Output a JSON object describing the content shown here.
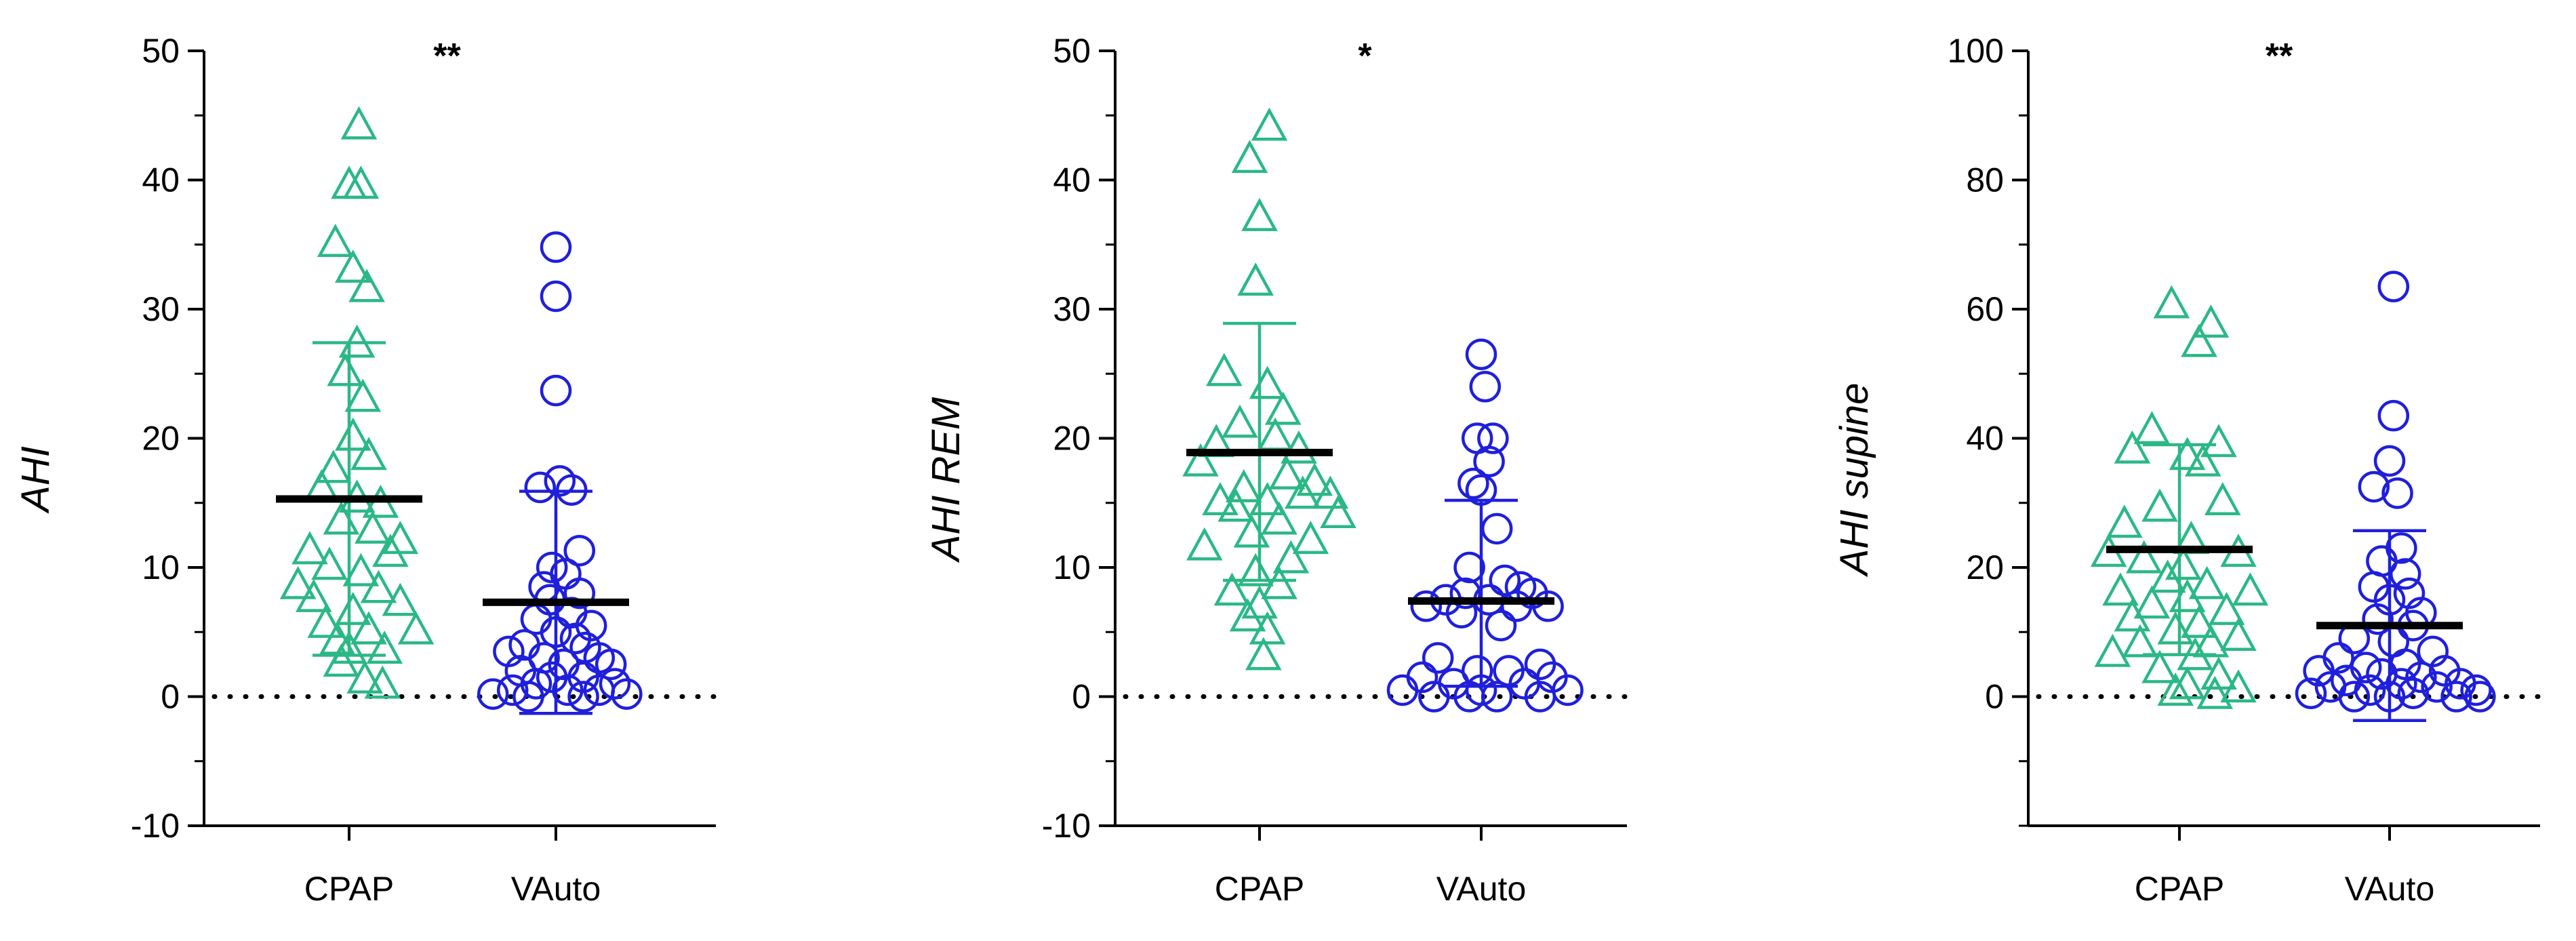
{
  "colors": {
    "CPAP": "#2bb886",
    "VAuto": "#1f1fdc",
    "mean_line": "#000000",
    "axis": "#000000"
  },
  "markers": {
    "CPAP": "triangle-open",
    "VAuto": "circle-open"
  },
  "chart_data": [
    {
      "type": "scatter",
      "title": "",
      "xlabel": "",
      "ylabel": "AHI",
      "ylim": [
        -10,
        50
      ],
      "yticks": [
        -10,
        0,
        10,
        20,
        30,
        40,
        50
      ],
      "y_minor_step": 5,
      "significance": "**",
      "zero_line": "dotted",
      "grid": false,
      "categories": [
        "CPAP",
        "VAuto"
      ],
      "series": [
        {
          "name": "CPAP",
          "mean": 15.3,
          "sd_upper": 27.4,
          "sd_lower": 3.2,
          "points": [
            [
              0.05,
              44.1
            ],
            [
              0.0,
              39.5
            ],
            [
              0.06,
              39.5
            ],
            [
              -0.07,
              35.0
            ],
            [
              0.02,
              33.0
            ],
            [
              0.09,
              31.5
            ],
            [
              0.04,
              27.2
            ],
            [
              -0.02,
              25.0
            ],
            [
              0.07,
              23.0
            ],
            [
              0.02,
              20.0
            ],
            [
              0.1,
              18.5
            ],
            [
              -0.08,
              17.5
            ],
            [
              -0.14,
              16.0
            ],
            [
              0.04,
              15.2
            ],
            [
              0.16,
              14.8
            ],
            [
              -0.04,
              13.5
            ],
            [
              0.12,
              12.8
            ],
            [
              0.26,
              12.0
            ],
            [
              -0.2,
              11.2
            ],
            [
              0.21,
              11.0
            ],
            [
              -0.1,
              10.0
            ],
            [
              0.06,
              9.5
            ],
            [
              -0.26,
              8.5
            ],
            [
              0.15,
              8.2
            ],
            [
              -0.18,
              7.5
            ],
            [
              0.26,
              7.2
            ],
            [
              0.02,
              6.5
            ],
            [
              -0.12,
              5.5
            ],
            [
              0.1,
              5.0
            ],
            [
              0.34,
              5.0
            ],
            [
              -0.06,
              4.2
            ],
            [
              0.0,
              3.5
            ],
            [
              0.18,
              3.5
            ],
            [
              -0.04,
              2.5
            ],
            [
              0.08,
              1.2
            ],
            [
              0.17,
              0.8
            ]
          ]
        },
        {
          "name": "VAuto",
          "mean": 7.3,
          "sd_upper": 15.9,
          "sd_lower": -1.3,
          "points": [
            [
              0.0,
              34.8
            ],
            [
              0.0,
              31.0
            ],
            [
              0.0,
              23.7
            ],
            [
              0.02,
              16.7
            ],
            [
              -0.08,
              16.2
            ],
            [
              0.08,
              16.0
            ],
            [
              0.12,
              11.3
            ],
            [
              -0.02,
              10.0
            ],
            [
              0.05,
              9.5
            ],
            [
              -0.06,
              8.5
            ],
            [
              0.12,
              8.0
            ],
            [
              -0.03,
              7.5
            ],
            [
              0.08,
              6.5
            ],
            [
              -0.1,
              6.0
            ],
            [
              0.18,
              5.5
            ],
            [
              0.0,
              5.0
            ],
            [
              0.1,
              4.5
            ],
            [
              -0.16,
              4.0
            ],
            [
              0.15,
              3.8
            ],
            [
              -0.24,
              3.5
            ],
            [
              0.22,
              3.0
            ],
            [
              -0.06,
              3.0
            ],
            [
              0.04,
              2.5
            ],
            [
              0.28,
              2.5
            ],
            [
              -0.18,
              2.0
            ],
            [
              -0.02,
              1.5
            ],
            [
              0.14,
              1.5
            ],
            [
              0.3,
              1.0
            ],
            [
              -0.1,
              1.0
            ],
            [
              -0.22,
              0.5
            ],
            [
              0.06,
              0.5
            ],
            [
              0.22,
              0.5
            ],
            [
              -0.32,
              0.2
            ],
            [
              -0.14,
              0.0
            ],
            [
              0.14,
              0.0
            ],
            [
              0.36,
              0.2
            ]
          ]
        }
      ]
    },
    {
      "type": "scatter",
      "title": "",
      "xlabel": "",
      "ylabel": "AHI REM",
      "ylim": [
        -10,
        50
      ],
      "yticks": [
        -10,
        0,
        10,
        20,
        30,
        40,
        50
      ],
      "y_minor_step": 5,
      "significance": "*",
      "zero_line": "dotted",
      "grid": false,
      "categories": [
        "CPAP",
        "VAuto"
      ],
      "series": [
        {
          "name": "CPAP",
          "mean": 18.9,
          "sd_upper": 28.9,
          "sd_lower": 9.0,
          "points": [
            [
              0.05,
              44.0
            ],
            [
              -0.05,
              41.5
            ],
            [
              0.0,
              37.0
            ],
            [
              -0.02,
              32.0
            ],
            [
              -0.18,
              25.0
            ],
            [
              0.04,
              24.0
            ],
            [
              0.12,
              22.0
            ],
            [
              -0.1,
              21.0
            ],
            [
              0.08,
              20.0
            ],
            [
              -0.22,
              19.5
            ],
            [
              0.2,
              19.0
            ],
            [
              -0.3,
              18.0
            ],
            [
              0.14,
              17.0
            ],
            [
              0.28,
              16.5
            ],
            [
              -0.08,
              16.0
            ],
            [
              0.36,
              15.5
            ],
            [
              -0.2,
              15.0
            ],
            [
              0.04,
              15.0
            ],
            [
              0.22,
              15.5
            ],
            [
              -0.12,
              14.5
            ],
            [
              0.4,
              14.0
            ],
            [
              0.1,
              13.5
            ],
            [
              -0.04,
              12.5
            ],
            [
              0.26,
              12.0
            ],
            [
              -0.28,
              11.5
            ],
            [
              0.16,
              10.5
            ],
            [
              -0.02,
              9.5
            ],
            [
              0.1,
              8.5
            ],
            [
              -0.14,
              8.0
            ],
            [
              0.0,
              7.0
            ],
            [
              -0.06,
              6.0
            ],
            [
              0.04,
              5.0
            ],
            [
              0.02,
              3.0
            ]
          ]
        },
        {
          "name": "VAuto",
          "mean": 7.4,
          "sd_upper": 15.2,
          "sd_lower": 0.8,
          "points": [
            [
              0.0,
              26.5
            ],
            [
              0.02,
              24.0
            ],
            [
              -0.02,
              20.0
            ],
            [
              0.06,
              20.0
            ],
            [
              0.04,
              18.2
            ],
            [
              -0.04,
              16.5
            ],
            [
              0.0,
              16.0
            ],
            [
              0.08,
              13.0
            ],
            [
              -0.06,
              10.0
            ],
            [
              0.12,
              9.0
            ],
            [
              0.2,
              8.5
            ],
            [
              -0.08,
              8.0
            ],
            [
              0.26,
              8.0
            ],
            [
              0.04,
              7.5
            ],
            [
              -0.18,
              7.5
            ],
            [
              0.18,
              7.0
            ],
            [
              0.34,
              7.0
            ],
            [
              -0.28,
              7.0
            ],
            [
              -0.1,
              6.5
            ],
            [
              0.1,
              5.5
            ],
            [
              -0.22,
              3.0
            ],
            [
              0.3,
              2.5
            ],
            [
              -0.02,
              2.0
            ],
            [
              0.14,
              2.0
            ],
            [
              0.36,
              1.5
            ],
            [
              -0.3,
              1.5
            ],
            [
              -0.14,
              1.0
            ],
            [
              0.22,
              1.0
            ],
            [
              0.0,
              0.5
            ],
            [
              0.44,
              0.5
            ],
            [
              -0.4,
              0.5
            ],
            [
              0.08,
              0.0
            ],
            [
              -0.24,
              0.0
            ],
            [
              0.3,
              0.0
            ],
            [
              -0.06,
              0.0
            ]
          ]
        }
      ]
    },
    {
      "type": "scatter",
      "title": "",
      "xlabel": "",
      "ylabel": "AHI supine",
      "ylim": [
        -20,
        100
      ],
      "yticks": [
        0,
        20,
        40,
        60,
        80,
        100
      ],
      "y_minor_step": 10,
      "significance": "**",
      "zero_line": "dotted",
      "grid": false,
      "categories": [
        "CPAP",
        "VAuto"
      ],
      "series": [
        {
          "name": "CPAP",
          "mean": 22.8,
          "sd_upper": 39.0,
          "sd_lower": 6.5,
          "points": [
            [
              -0.04,
              60.5
            ],
            [
              0.16,
              57.5
            ],
            [
              0.1,
              54.5
            ],
            [
              -0.14,
              41.0
            ],
            [
              0.2,
              39.0
            ],
            [
              -0.24,
              38.0
            ],
            [
              0.04,
              37.0
            ],
            [
              0.12,
              36.0
            ],
            [
              0.22,
              30.0
            ],
            [
              -0.1,
              29.0
            ],
            [
              -0.28,
              26.5
            ],
            [
              0.06,
              24.0
            ],
            [
              -0.36,
              22.0
            ],
            [
              0.3,
              22.0
            ],
            [
              -0.18,
              21.0
            ],
            [
              0.02,
              20.0
            ],
            [
              -0.06,
              18.0
            ],
            [
              0.14,
              17.0
            ],
            [
              -0.3,
              16.0
            ],
            [
              0.36,
              16.0
            ],
            [
              0.04,
              15.0
            ],
            [
              -0.14,
              14.0
            ],
            [
              0.24,
              13.0
            ],
            [
              -0.24,
              12.0
            ],
            [
              0.1,
              11.0
            ],
            [
              -0.02,
              10.0
            ],
            [
              0.3,
              9.0
            ],
            [
              -0.2,
              8.0
            ],
            [
              0.16,
              8.0
            ],
            [
              -0.34,
              6.5
            ],
            [
              0.08,
              6.0
            ],
            [
              -0.1,
              4.0
            ],
            [
              0.2,
              3.0
            ],
            [
              0.04,
              1.5
            ],
            [
              0.3,
              1.0
            ],
            [
              -0.02,
              0.5
            ],
            [
              0.18,
              0.0
            ]
          ]
        },
        {
          "name": "VAuto",
          "mean": 11.0,
          "sd_upper": 25.7,
          "sd_lower": -3.7,
          "points": [
            [
              0.02,
              63.5
            ],
            [
              0.02,
              43.5
            ],
            [
              0.0,
              36.5
            ],
            [
              -0.08,
              32.5
            ],
            [
              0.04,
              31.5
            ],
            [
              0.06,
              23.0
            ],
            [
              -0.04,
              21.0
            ],
            [
              0.08,
              19.0
            ],
            [
              -0.08,
              17.0
            ],
            [
              0.1,
              16.0
            ],
            [
              0.0,
              15.0
            ],
            [
              0.16,
              13.0
            ],
            [
              -0.06,
              12.0
            ],
            [
              0.12,
              11.0
            ],
            [
              -0.18,
              9.0
            ],
            [
              0.02,
              8.5
            ],
            [
              0.22,
              7.0
            ],
            [
              -0.26,
              6.0
            ],
            [
              0.08,
              5.0
            ],
            [
              -0.12,
              4.5
            ],
            [
              -0.36,
              4.0
            ],
            [
              0.28,
              4.0
            ],
            [
              -0.04,
              3.5
            ],
            [
              0.16,
              3.0
            ],
            [
              -0.22,
              2.5
            ],
            [
              0.36,
              2.0
            ],
            [
              0.06,
              2.0
            ],
            [
              -0.3,
              1.5
            ],
            [
              0.24,
              1.5
            ],
            [
              -0.1,
              1.0
            ],
            [
              0.44,
              1.0
            ],
            [
              -0.4,
              0.5
            ],
            [
              0.12,
              0.5
            ],
            [
              -0.18,
              0.0
            ],
            [
              0.34,
              0.0
            ],
            [
              0.0,
              0.0
            ],
            [
              0.46,
              0.0
            ]
          ]
        }
      ]
    }
  ]
}
